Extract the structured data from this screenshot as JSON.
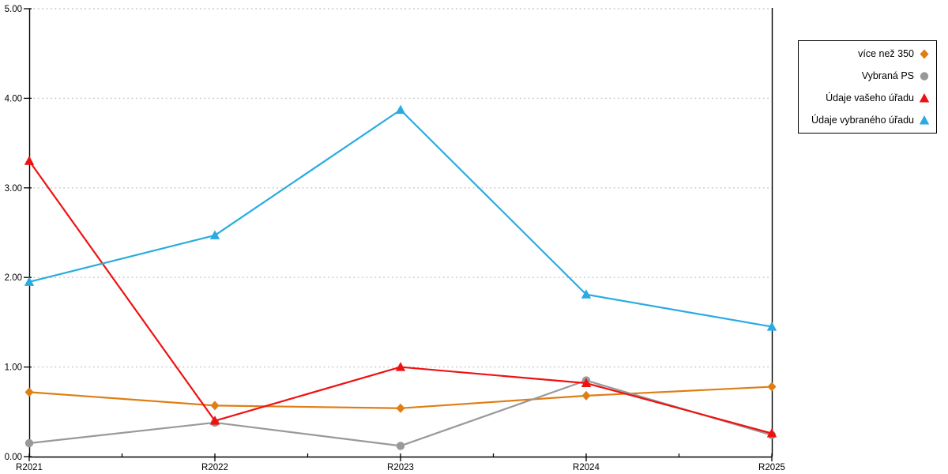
{
  "chart_data": {
    "type": "line",
    "title": "",
    "xlabel": "",
    "ylabel": "",
    "categories": [
      "R2021",
      "R2022",
      "R2023",
      "R2024",
      "R2025"
    ],
    "y_tick_labels": [
      "0.00",
      "1.00",
      "2.00",
      "3.00",
      "4.00",
      "5.00"
    ],
    "ylim": [
      0,
      5
    ],
    "grid": "horizontal-dotted",
    "gridline_color": "#c6c6c6",
    "axis_color": "#000000",
    "legend_position": "outside-right",
    "series": [
      {
        "name": "více než 350",
        "color": "#de7e14",
        "marker": "diamond",
        "values": [
          0.72,
          0.57,
          0.54,
          0.68,
          0.78
        ]
      },
      {
        "name": "Vybraná PS",
        "color": "#999999",
        "marker": "circle",
        "values": [
          0.15,
          0.38,
          0.12,
          0.85,
          0.24
        ]
      },
      {
        "name": "Údaje vašeho úřadu",
        "color": "#ee1111",
        "marker": "triangle",
        "values": [
          3.3,
          0.4,
          1.0,
          0.82,
          0.26
        ]
      },
      {
        "name": "Údaje vybraného úřadu",
        "color": "#29abe2",
        "marker": "triangle",
        "values": [
          1.95,
          2.47,
          3.87,
          1.81,
          1.45
        ]
      }
    ]
  }
}
